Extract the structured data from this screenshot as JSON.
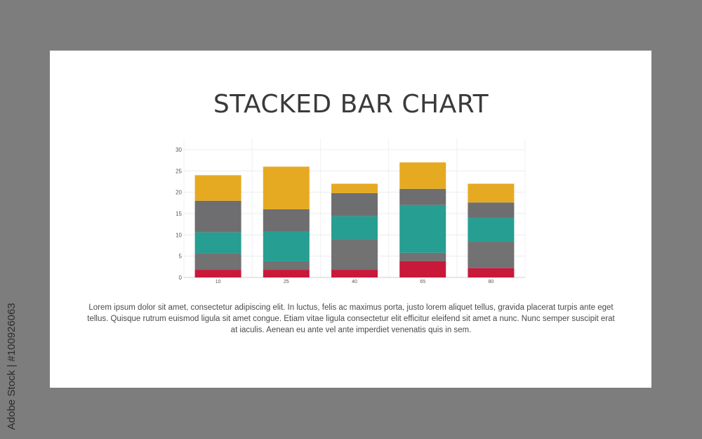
{
  "watermark": {
    "side_text": "Adobe Stock | #100926063"
  },
  "slide": {
    "title": "STACKED BAR CHART",
    "caption": "Lorem ipsum dolor sit amet, consectetur adipiscing elit. In luctus, felis ac maximus porta, justo lorem aliquet tellus, gravida placerat turpis ante eget tellus. Quisque rutrum euismod ligula sit amet congue. Etiam vitae ligula consectetur elit efficitur eleifend sit amet a nunc. Nunc semper suscipit erat at iaculis. Aenean eu ante vel ante imperdiet venenatis quis in sem."
  },
  "chart_data": {
    "type": "bar",
    "stacked": true,
    "title": "",
    "xlabel": "",
    "ylabel": "",
    "categories": [
      "10",
      "25",
      "40",
      "65",
      "80"
    ],
    "ylim": [
      0,
      30
    ],
    "yticks": [
      0,
      5,
      10,
      15,
      20,
      25,
      30
    ],
    "grid": true,
    "legend": "none",
    "series": [
      {
        "values": [
          1.8,
          1.8,
          1.8,
          3.8,
          2.2
        ],
        "color": "#c8193b"
      },
      {
        "values": [
          3.9,
          2.0,
          7.2,
          2.0,
          6.2
        ],
        "color": "#727272"
      },
      {
        "values": [
          4.9,
          7.0,
          5.4,
          11.2,
          5.6
        ],
        "color": "#269e92"
      },
      {
        "values": [
          7.4,
          5.2,
          5.4,
          3.8,
          3.6
        ],
        "color": "#6e6e70"
      },
      {
        "values": [
          6.0,
          10.0,
          2.2,
          6.2,
          4.4
        ],
        "color": "#e6aa22"
      }
    ]
  }
}
